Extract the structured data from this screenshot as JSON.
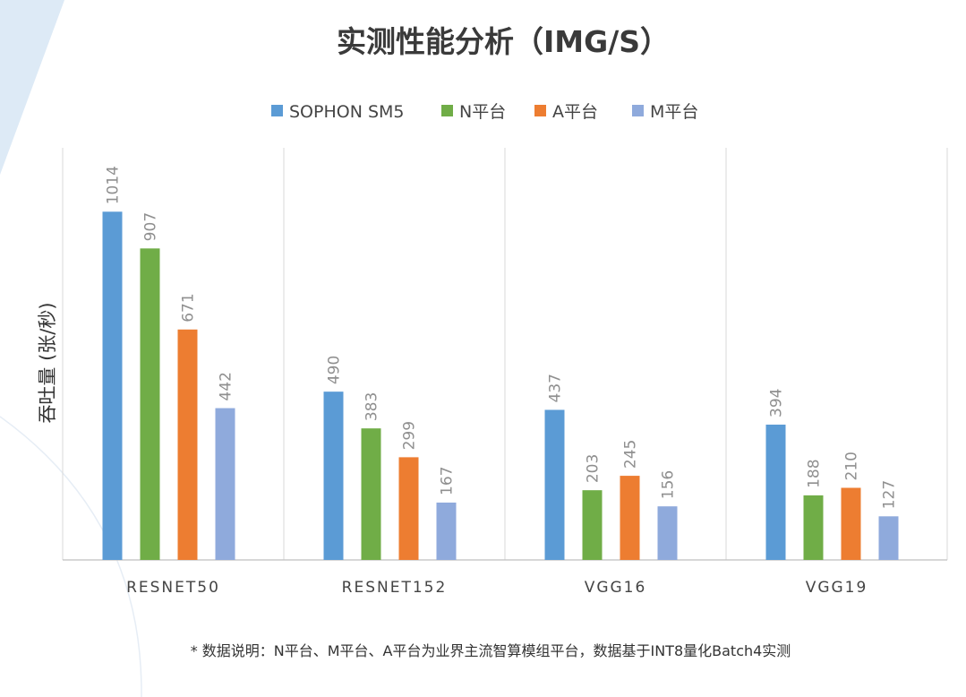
{
  "colors": {
    "background": "#ffffff",
    "decor_light_blue": "#ddeaf6",
    "grid": "#d9d9d9",
    "axis": "#bfbfbf"
  },
  "chart_data": {
    "type": "bar",
    "title": "实测性能分析（IMG/S）",
    "ylabel": "吞吐量 (张/秒)",
    "xlabel": "",
    "categories": [
      "RESNET50",
      "RESNET152",
      "VGG16",
      "VGG19"
    ],
    "series": [
      {
        "name": "SOPHON SM5",
        "color": "#5b9bd5",
        "values": [
          1014,
          490,
          437,
          394
        ]
      },
      {
        "name": "N平台",
        "color": "#70ad47",
        "values": [
          907,
          383,
          203,
          188
        ]
      },
      {
        "name": "A平台",
        "color": "#ed7d31",
        "values": [
          671,
          299,
          245,
          210
        ]
      },
      {
        "name": "M平台",
        "color": "#8faadc",
        "values": [
          442,
          167,
          156,
          127
        ]
      }
    ],
    "ylim": [
      0,
      1200
    ],
    "grid": "vertical category separators",
    "legend_position": "top-center",
    "data_labels": "rotated, above bars"
  },
  "footnote": "* 数据说明：N平台、M平台、A平台为业界主流智算模组平台，数据基于INT8量化Batch4实测"
}
